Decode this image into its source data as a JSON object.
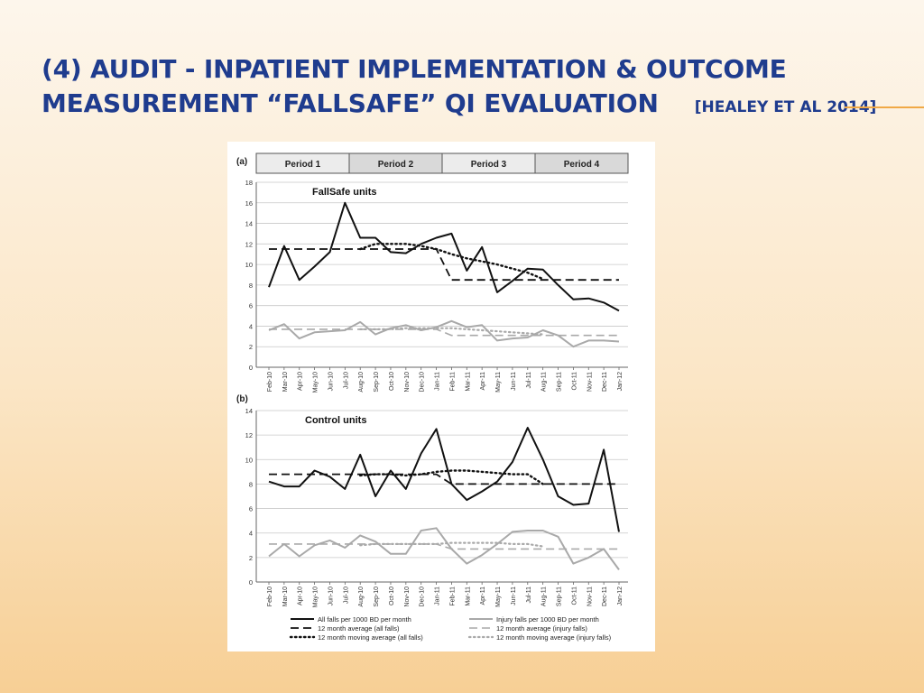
{
  "slide": {
    "title_line1": "(4) AUDIT - INPATIENT IMPLEMENTATION & OUTCOME",
    "title_line2": "MEASUREMENT “FALLSAFE” QI EVALUATION",
    "citation": "[HEALEY ET AL 2014]",
    "accent_color": "#f0a946",
    "title_color": "#1f3c8e"
  },
  "figure": {
    "periods": [
      "Period 1",
      "Period 2",
      "Period 3",
      "Period 4"
    ],
    "legend": {
      "all_falls": "All falls per 1000 BD per month",
      "avg_all": "12 month average (all falls)",
      "mov_all": "12 month moving average (all falls)",
      "injury_falls": "Injury falls per 1000 BD per month",
      "avg_injury": "12 month average (injury falls)",
      "mov_injury": "12 month moving average (injury falls)"
    }
  },
  "chart_data": [
    {
      "type": "line",
      "panel_label": "(a)",
      "title": "FallSafe units",
      "categories": [
        "Feb-10",
        "Mar-10",
        "Apr-10",
        "May-10",
        "Jun-10",
        "Jul-10",
        "Aug-10",
        "Sep-10",
        "Oct-10",
        "Nov-10",
        "Dec-10",
        "Jan-11",
        "Feb-11",
        "Mar-11",
        "Apr-11",
        "May-11",
        "Jun-11",
        "Jul-11",
        "Aug-11",
        "Sep-11",
        "Oct-11",
        "Nov-11",
        "Dec-11",
        "Jan-12"
      ],
      "ylim": [
        0,
        18
      ],
      "yticks": [
        0,
        2,
        4,
        6,
        8,
        10,
        12,
        14,
        16,
        18
      ],
      "grid": true,
      "series": [
        {
          "name": "All falls per 1000 BD per month",
          "style": "solid-black",
          "values": [
            7.8,
            11.8,
            8.5,
            9.8,
            11.2,
            16,
            12.6,
            12.6,
            11.2,
            11.1,
            12,
            12.6,
            13,
            9.4,
            11.7,
            7.3,
            8.4,
            9.6,
            9.5,
            8,
            6.6,
            6.7,
            6.3,
            5.5
          ]
        },
        {
          "name": "12 month average (all falls)",
          "style": "dashed-black",
          "values": [
            11.5,
            11.5,
            11.5,
            11.5,
            11.5,
            11.5,
            11.5,
            11.5,
            11.5,
            11.5,
            11.5,
            11.5,
            8.5,
            8.5,
            8.5,
            8.5,
            8.5,
            8.5,
            8.5,
            8.5,
            8.5,
            8.5,
            8.5,
            8.5
          ]
        },
        {
          "name": "12 month moving average (all falls)",
          "style": "dotted-black",
          "values": [
            null,
            null,
            null,
            null,
            null,
            null,
            11.5,
            12,
            12,
            12,
            11.8,
            11.5,
            11,
            10.6,
            10.3,
            10,
            9.6,
            9.2,
            8.6,
            null,
            null,
            null,
            null,
            null
          ]
        },
        {
          "name": "Injury falls per 1000 BD per month",
          "style": "solid-gray",
          "values": [
            3.6,
            4.2,
            2.8,
            3.4,
            3.5,
            3.6,
            4.4,
            3.2,
            3.8,
            4.1,
            3.6,
            3.9,
            4.5,
            3.9,
            4.1,
            2.6,
            2.8,
            2.9,
            3.6,
            3.1,
            2,
            2.6,
            2.6,
            2.5
          ]
        },
        {
          "name": "12 month average (injury falls)",
          "style": "dashed-gray",
          "values": [
            3.7,
            3.7,
            3.7,
            3.7,
            3.7,
            3.7,
            3.7,
            3.7,
            3.7,
            3.7,
            3.7,
            3.7,
            3.1,
            3.1,
            3.1,
            3.1,
            3.1,
            3.1,
            3.1,
            3.1,
            3.1,
            3.1,
            3.1,
            3.1
          ]
        },
        {
          "name": "12 month moving average (injury falls)",
          "style": "dotted-gray",
          "values": [
            null,
            null,
            null,
            null,
            null,
            null,
            3.7,
            3.7,
            3.7,
            3.8,
            3.8,
            3.8,
            3.8,
            3.7,
            3.6,
            3.5,
            3.4,
            3.3,
            3.2,
            null,
            null,
            null,
            null,
            null
          ]
        }
      ]
    },
    {
      "type": "line",
      "panel_label": "(b)",
      "title": "Control units",
      "categories": [
        "Feb-10",
        "Mar-10",
        "Apr-10",
        "May-10",
        "Jun-10",
        "Jul-10",
        "Aug-10",
        "Sep-10",
        "Oct-10",
        "Nov-10",
        "Dec-10",
        "Jan-11",
        "Feb-11",
        "Mar-11",
        "Apr-11",
        "May-11",
        "Jun-11",
        "Jul-11",
        "Aug-11",
        "Sep-11",
        "Oct-11",
        "Nov-11",
        "Dec-11",
        "Jan-12"
      ],
      "ylim": [
        0,
        14
      ],
      "yticks": [
        0,
        2,
        4,
        6,
        8,
        10,
        12,
        14
      ],
      "grid": true,
      "series": [
        {
          "name": "All falls per 1000 BD per month",
          "style": "solid-black",
          "values": [
            8.2,
            7.8,
            7.8,
            9.1,
            8.6,
            7.6,
            10.4,
            7,
            9.1,
            7.6,
            10.5,
            12.5,
            8,
            6.7,
            7.4,
            8.2,
            9.8,
            12.6,
            10,
            7,
            6.3,
            6.4,
            10.8,
            4.1
          ]
        },
        {
          "name": "12 month average (all falls)",
          "style": "dashed-black",
          "values": [
            8.8,
            8.8,
            8.8,
            8.8,
            8.8,
            8.8,
            8.8,
            8.8,
            8.8,
            8.8,
            8.8,
            8.8,
            8,
            8,
            8,
            8,
            8,
            8,
            8,
            8,
            8,
            8,
            8,
            8
          ]
        },
        {
          "name": "12 month moving average (all falls)",
          "style": "dotted-black",
          "values": [
            null,
            null,
            null,
            null,
            null,
            null,
            8.7,
            8.8,
            8.8,
            8.7,
            8.8,
            9,
            9.1,
            9.1,
            9,
            8.9,
            8.8,
            8.8,
            8,
            null,
            null,
            null,
            null,
            null
          ]
        },
        {
          "name": "Injury falls per 1000 BD per month",
          "style": "solid-gray",
          "values": [
            2.1,
            3.1,
            2.1,
            3,
            3.4,
            2.8,
            3.8,
            3.3,
            2.3,
            2.3,
            4.2,
            4.4,
            2.7,
            1.5,
            2.2,
            3.1,
            4.1,
            4.2,
            4.2,
            3.7,
            1.5,
            2,
            2.7,
            1
          ]
        },
        {
          "name": "12 month average (injury falls)",
          "style": "dashed-gray",
          "values": [
            3.1,
            3.1,
            3.1,
            3.1,
            3.1,
            3.1,
            3.1,
            3.1,
            3.1,
            3.1,
            3.1,
            3.1,
            2.7,
            2.7,
            2.7,
            2.7,
            2.7,
            2.7,
            2.7,
            2.7,
            2.7,
            2.7,
            2.7,
            2.7
          ]
        },
        {
          "name": "12 month moving average (injury falls)",
          "style": "dotted-gray",
          "values": [
            null,
            null,
            null,
            null,
            null,
            null,
            3,
            3.1,
            3.1,
            3.1,
            3.1,
            3.1,
            3.2,
            3.2,
            3.2,
            3.2,
            3.1,
            3.1,
            2.9,
            null,
            null,
            null,
            null,
            null
          ]
        }
      ]
    }
  ]
}
